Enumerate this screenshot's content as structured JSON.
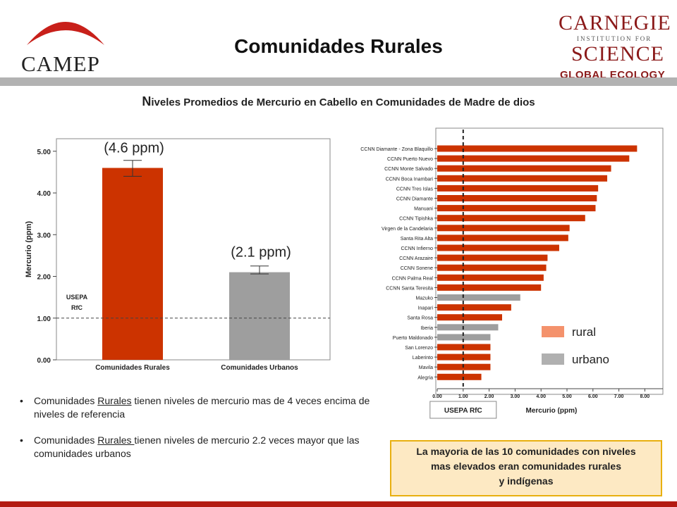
{
  "header": {
    "left_logo_text": "CAMEP",
    "title": "Comunidades Rurales",
    "right_logo": {
      "line1": "CARNEGIE",
      "line2": "INSTITUTION FOR",
      "line3": "SCIENCE",
      "line4": "GLOBAL ECOLOGY"
    }
  },
  "subtitle_first": "N",
  "subtitle_rest": "iveles Promedios de Mercurio en Cabello en Comunidades de Madre de dios",
  "colors": {
    "rural": "#cc3300",
    "urban": "#9e9e9e",
    "legend_rural": "#f4926c",
    "legend_urban": "#b0b0b0",
    "callout_bg": "#fde9c3",
    "callout_border": "#e8b010",
    "accent_bar": "#b31b12"
  },
  "chart_data": [
    {
      "type": "bar",
      "categories": [
        "Comunidades Rurales",
        "Comunidades Urbanos"
      ],
      "values": [
        4.6,
        2.1
      ],
      "error": [
        [
          4.4,
          4.78
        ],
        [
          2.06,
          2.25
        ]
      ],
      "ylabel": "Mercurio (ppm)",
      "ylim": [
        0,
        5.3
      ],
      "yticks": [
        "0.00",
        "1.00",
        "2.00",
        "3.00",
        "4.00",
        "5.00"
      ],
      "reference_line": {
        "value": 1.0,
        "label_line1": "USEPA",
        "label_line2": "RfC"
      },
      "data_labels": [
        "(4.6 ppm)",
        "(2.1 ppm)"
      ]
    },
    {
      "type": "bar",
      "orientation": "horizontal",
      "categories": [
        "CCNN Diamante - Zona Blaquillo",
        "CCNN Puerto Nuevo",
        "CCNN Monte Salvado",
        "CCNN Boca Inambari",
        "CCNN Tres Islas",
        "CCNN Diamante",
        "Manuani",
        "CCNN Tipishka",
        "Virgen de la Candelaria",
        "Santa Rita Alta",
        "CCNN Infierno",
        "CCNN Arazaire",
        "CCNN Sonene",
        "CCNN Palma Real",
        "CCNN Santa Teresita",
        "Mazuko",
        "Inapari",
        "Santa Rosa",
        "Iberia",
        "Puerto Maldonado",
        "San Lorenzo",
        "Laberinto",
        "Mavila",
        "Alegria"
      ],
      "values": [
        7.7,
        7.4,
        6.7,
        6.55,
        6.2,
        6.15,
        6.1,
        5.7,
        5.1,
        5.05,
        4.7,
        4.25,
        4.2,
        4.1,
        4.0,
        3.2,
        2.85,
        2.5,
        2.35,
        2.05,
        2.05,
        2.05,
        2.05,
        1.7
      ],
      "groups": [
        "rural",
        "rural",
        "rural",
        "rural",
        "rural",
        "rural",
        "rural",
        "rural",
        "rural",
        "rural",
        "rural",
        "rural",
        "rural",
        "rural",
        "rural",
        "urbano",
        "rural",
        "rural",
        "urbano",
        "urbano",
        "rural",
        "rural",
        "rural",
        "rural"
      ],
      "xlabel": "Mercurio (ppm)",
      "xlim": [
        0,
        8.5
      ],
      "xticks": [
        "0.00",
        "1.00",
        "2.00",
        "3.00",
        "4.00",
        "5.00",
        "6.00",
        "7.00",
        "8.00"
      ],
      "reference_line": {
        "value": 1.0,
        "label": "USEPA RfC"
      },
      "legend": [
        "rural",
        "urbano"
      ],
      "legend_position": "bottom-right"
    }
  ],
  "bullets": [
    {
      "pre": "Comunidades ",
      "u": "Rurales",
      "post": " tienen niveles  de mercurio mas de 4 veces encima  de niveles de referencia"
    },
    {
      "pre": "Comunidades ",
      "u": "Rurales ",
      "post": " tienen niveles  de mercurio  2.2 veces mayor que las comunidades urbanos"
    }
  ],
  "callout": {
    "line1": "La mayoria de las 10 comunidades con niveles",
    "line2": "mas elevados eran comunidades  rurales",
    "line3": "y  indígenas"
  }
}
